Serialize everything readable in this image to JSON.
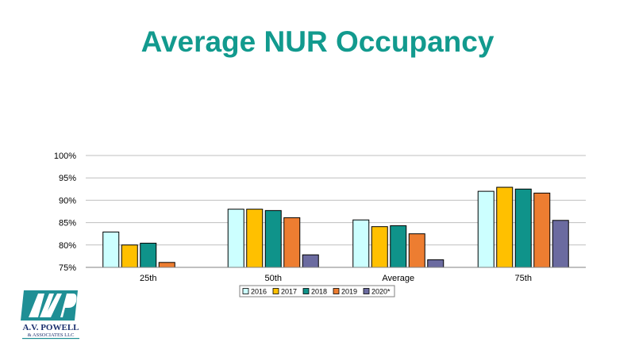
{
  "title": "Average NUR Occupancy",
  "chart_data": {
    "type": "bar",
    "title": "",
    "xlabel": "",
    "ylabel": "",
    "ylim": [
      75,
      100
    ],
    "y_ticks": [
      "75%",
      "80%",
      "85%",
      "90%",
      "95%",
      "100%"
    ],
    "y_tick_values": [
      75,
      80,
      85,
      90,
      95,
      100
    ],
    "grid": true,
    "legend_position": "bottom",
    "categories": [
      "25th",
      "50th",
      "Average",
      "75th"
    ],
    "series": [
      {
        "name": "2016",
        "color": "#ccffff",
        "values": [
          82.9,
          88.0,
          85.6,
          92.0
        ]
      },
      {
        "name": "2017",
        "color": "#ffc000",
        "values": [
          80.0,
          88.0,
          84.1,
          92.9
        ]
      },
      {
        "name": "2018",
        "color": "#0f938a",
        "values": [
          80.4,
          87.7,
          84.3,
          92.5
        ]
      },
      {
        "name": "2019",
        "color": "#ed7d31",
        "values": [
          76.1,
          86.1,
          82.5,
          91.6
        ]
      },
      {
        "name": "2020*",
        "color": "#6b6ba0",
        "values": [
          null,
          77.8,
          76.7,
          85.5
        ]
      }
    ]
  },
  "logo": {
    "name": "A.V. POWELL",
    "sub": "& ASSOCIATES LLC",
    "mark": "AVP",
    "colors": {
      "teal": "#1f8f95",
      "navy": "#1b2f6e"
    }
  }
}
